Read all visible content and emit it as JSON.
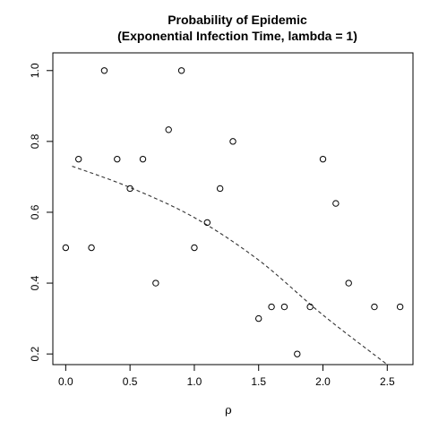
{
  "chart_data": {
    "type": "scatter",
    "title": "Probability of Epidemic",
    "subtitle": "(Exponential Infection Time, lambda = 1)",
    "xlabel": "ρ",
    "ylabel": "",
    "xlim": [
      -0.1,
      2.7
    ],
    "ylim": [
      0.17,
      1.05
    ],
    "x_ticks": [
      "0.0",
      "0.5",
      "1.0",
      "1.5",
      "2.0",
      "2.5"
    ],
    "y_ticks": [
      "0.2",
      "0.4",
      "0.6",
      "0.8",
      "1.0"
    ],
    "grid": false,
    "legend": "none",
    "points": {
      "x": [
        0.0,
        0.1,
        0.2,
        0.3,
        0.4,
        0.5,
        0.6,
        0.7,
        0.8,
        0.9,
        1.0,
        1.1,
        1.2,
        1.3,
        1.5,
        1.6,
        1.7,
        1.8,
        1.9,
        2.0,
        2.1,
        2.2,
        2.4,
        2.6
      ],
      "y": [
        0.5,
        0.75,
        0.5,
        1.0,
        0.75,
        0.667,
        0.75,
        0.4,
        0.833,
        1.0,
        0.5,
        0.571,
        0.667,
        0.8,
        0.3,
        0.333,
        0.333,
        0.2,
        0.333,
        0.75,
        0.625,
        0.4,
        0.333,
        0.333
      ]
    },
    "fit_line": {
      "style": "dashed",
      "x": [
        0.05,
        0.5,
        1.0,
        1.5,
        2.0,
        2.5
      ],
      "y": [
        0.73,
        0.67,
        0.585,
        0.465,
        0.31,
        0.17
      ]
    }
  }
}
